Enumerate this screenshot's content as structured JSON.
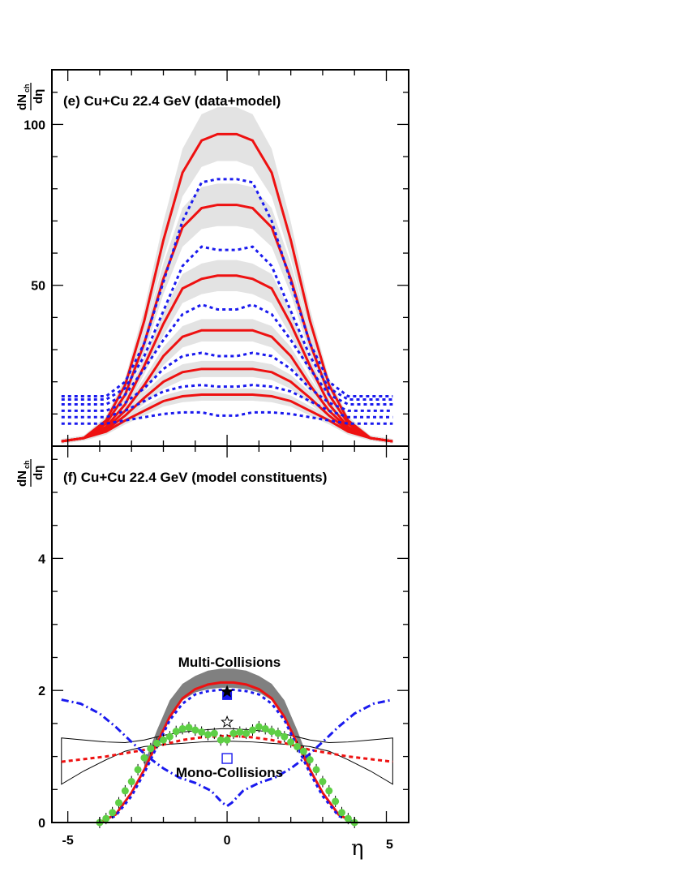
{
  "chart_data": [
    {
      "type": "line",
      "title": "(e) Cu+Cu 22.4 GeV (data+model)",
      "ylabel": {
        "main": "dN",
        "sub": "ch",
        "den": "dη"
      },
      "xlim": [
        -5.5,
        5.7
      ],
      "ylim": [
        0,
        117
      ],
      "yticks": [
        50,
        100
      ],
      "band_color": "#e3e3e3",
      "band_series": [
        {
          "lo": [
            5,
            5,
            6,
            10,
            18,
            30,
            38,
            38,
            30,
            18,
            10,
            6,
            5,
            5
          ],
          "hi": [
            5,
            5,
            7,
            13,
            28,
            60,
            102,
            102,
            60,
            28,
            13,
            7,
            5,
            5
          ]
        }
      ],
      "x_model": [
        -5.2,
        -4.5,
        -3.8,
        -3.2,
        -2.6,
        -2.0,
        -1.4,
        -0.8,
        -0.3,
        0.3,
        0.8,
        1.4,
        2.0,
        2.6,
        3.2,
        3.8,
        4.5,
        5.2
      ],
      "series": [
        {
          "color": "#ee1111",
          "style": "solid",
          "values": [
            1.5,
            2.5,
            4.5,
            8,
            11,
            14,
            15.5,
            16,
            16,
            16,
            16,
            15.5,
            14,
            11,
            8,
            4.5,
            2.5,
            1.5
          ]
        },
        {
          "color": "#ee1111",
          "style": "solid",
          "values": [
            1.5,
            2.5,
            5,
            9.5,
            15,
            20,
            23,
            24,
            24,
            24,
            24,
            23,
            20,
            15,
            9.5,
            5,
            2.5,
            1.5
          ]
        },
        {
          "color": "#ee1111",
          "style": "solid",
          "values": [
            1.5,
            2.5,
            5.5,
            11,
            19,
            28,
            34,
            36,
            36,
            36,
            36,
            34,
            28,
            19,
            11,
            5.5,
            2.5,
            1.5
          ]
        },
        {
          "color": "#ee1111",
          "style": "solid",
          "values": [
            1.5,
            2.5,
            6,
            13,
            25,
            38,
            49,
            52,
            53,
            53,
            52,
            49,
            38,
            25,
            13,
            6,
            2.5,
            1.5
          ]
        },
        {
          "color": "#ee1111",
          "style": "solid",
          "values": [
            1.5,
            2.5,
            7,
            16,
            32,
            52,
            68,
            74,
            75,
            75,
            74,
            68,
            52,
            32,
            16,
            7,
            2.5,
            1.5
          ]
        },
        {
          "color": "#ee1111",
          "style": "solid",
          "values": [
            1.5,
            2.5,
            8,
            19,
            39,
            64,
            85,
            95,
            97,
            97,
            95,
            85,
            64,
            39,
            19,
            8,
            2.5,
            1.5
          ]
        },
        {
          "color": "#1a1aee",
          "style": "dotted",
          "values": [
            7,
            7,
            7,
            8,
            9,
            10,
            10.5,
            10.5,
            9.5,
            9.5,
            10.5,
            10.5,
            10,
            9,
            8,
            7,
            7,
            7
          ]
        },
        {
          "color": "#1a1aee",
          "style": "dotted",
          "values": [
            9,
            9,
            9,
            11,
            14,
            17,
            18.5,
            19,
            18.5,
            18.5,
            19,
            18.5,
            17,
            14,
            11,
            9,
            9,
            9
          ]
        },
        {
          "color": "#1a1aee",
          "style": "dotted",
          "values": [
            11,
            11,
            11,
            13.5,
            18,
            24,
            28,
            29,
            28,
            28,
            29,
            28,
            24,
            18,
            13.5,
            11,
            11,
            11
          ]
        },
        {
          "color": "#1a1aee",
          "style": "dotted",
          "values": [
            13,
            13,
            13,
            16,
            24,
            33,
            41,
            44,
            42.5,
            42.5,
            44,
            41,
            33,
            24,
            16,
            13,
            13,
            13
          ]
        },
        {
          "color": "#1a1aee",
          "style": "dotted",
          "values": [
            14.5,
            14.5,
            14.5,
            18,
            28,
            42,
            56,
            62,
            61,
            61,
            62,
            56,
            42,
            28,
            18,
            14.5,
            14.5,
            14.5
          ]
        },
        {
          "color": "#1a1aee",
          "style": "dotted",
          "values": [
            15.5,
            15.5,
            15.5,
            20,
            32,
            51,
            70,
            82,
            83,
            83,
            82,
            70,
            51,
            32,
            20,
            15.5,
            15.5,
            15.5
          ]
        }
      ]
    },
    {
      "type": "line",
      "title": "(f) Cu+Cu 22.4 GeV (model constituents)",
      "ylabel": {
        "main": "dN",
        "sub": "ch",
        "den": "dη"
      },
      "xlabel": "η",
      "xlim": [
        -5.5,
        5.7
      ],
      "ylim": [
        0,
        5.7
      ],
      "yticks": [
        0,
        2,
        4
      ],
      "xticks": [
        -5,
        0,
        5
      ],
      "annotations": [
        "Multi-Collisions",
        "Mono-Collisions"
      ],
      "band_color": "#808080",
      "band_series": [
        {
          "x": [
            -2.6,
            -2.2,
            -1.8,
            -1.4,
            -1.0,
            -0.6,
            -0.2,
            0.2,
            0.6,
            1.0,
            1.4,
            1.8,
            2.2,
            2.6
          ],
          "lo": [
            0.8,
            1.25,
            1.6,
            1.85,
            1.97,
            2.02,
            2.04,
            2.04,
            2.02,
            1.97,
            1.85,
            1.6,
            1.25,
            0.8
          ],
          "hi": [
            0.9,
            1.4,
            1.85,
            2.1,
            2.22,
            2.3,
            2.33,
            2.33,
            2.3,
            2.22,
            2.1,
            1.85,
            1.4,
            0.9
          ]
        }
      ],
      "x_model": [
        -4.0,
        -3.5,
        -3.0,
        -2.6,
        -2.2,
        -1.8,
        -1.4,
        -1.0,
        -0.6,
        -0.2,
        0.2,
        0.6,
        1.0,
        1.4,
        1.8,
        2.2,
        2.6,
        3.0,
        3.5,
        4.0
      ],
      "series": [
        {
          "color": "#ee1111",
          "style": "solid",
          "values": [
            0,
            0.12,
            0.45,
            0.8,
            1.2,
            1.6,
            1.88,
            2.02,
            2.09,
            2.12,
            2.12,
            2.09,
            2.02,
            1.88,
            1.6,
            1.2,
            0.8,
            0.45,
            0.12,
            0
          ]
        },
        {
          "color": "#1a1aee",
          "style": "dotted",
          "values": [
            0,
            0.1,
            0.4,
            0.75,
            1.15,
            1.55,
            1.8,
            1.94,
            1.99,
            2.01,
            2.01,
            1.99,
            1.94,
            1.8,
            1.55,
            1.15,
            0.75,
            0.4,
            0.1,
            0
          ]
        }
      ],
      "thin_band": {
        "x": [
          -5.2,
          -4.5,
          -3.8,
          -3.2,
          -2.6,
          -2.0,
          -1.4,
          -0.8,
          -0.2,
          0.2,
          0.8,
          1.4,
          2.0,
          2.6,
          3.2,
          3.8,
          4.5,
          5.2
        ],
        "lo": [
          0.58,
          0.78,
          0.95,
          1.08,
          1.15,
          1.18,
          1.2,
          1.22,
          1.23,
          1.23,
          1.22,
          1.2,
          1.18,
          1.15,
          1.08,
          0.95,
          0.78,
          0.58
        ],
        "hi": [
          1.28,
          1.25,
          1.22,
          1.21,
          1.25,
          1.32,
          1.37,
          1.4,
          1.42,
          1.42,
          1.4,
          1.37,
          1.32,
          1.25,
          1.21,
          1.22,
          1.25,
          1.28
        ]
      },
      "red_dashed": {
        "x": [
          -5.2,
          -4.5,
          -3.8,
          -3.2,
          -2.6,
          -2.0,
          -1.4,
          -0.8,
          -0.2,
          0.2,
          0.8,
          1.4,
          2.0,
          2.6,
          3.2,
          3.8,
          4.5,
          5.2
        ],
        "values": [
          0.92,
          0.96,
          1.0,
          1.05,
          1.1,
          1.18,
          1.25,
          1.29,
          1.31,
          1.31,
          1.29,
          1.25,
          1.18,
          1.1,
          1.05,
          1.0,
          0.96,
          0.92
        ]
      },
      "blue_dashdot": {
        "x": [
          -5.2,
          -4.6,
          -4.0,
          -3.5,
          -3.0,
          -2.5,
          -2.0,
          -1.5,
          -1.0,
          -0.5,
          -0.15,
          0,
          0.15,
          0.5,
          1.0,
          1.5,
          2.0,
          2.5,
          3.0,
          3.5,
          4.0,
          4.6,
          5.2
        ],
        "values": [
          1.86,
          1.8,
          1.65,
          1.45,
          1.22,
          1.0,
          0.82,
          0.68,
          0.6,
          0.48,
          0.3,
          0.25,
          0.3,
          0.48,
          0.6,
          0.68,
          0.82,
          1.0,
          1.22,
          1.45,
          1.65,
          1.8,
          1.86
        ]
      },
      "green_points": {
        "x": [
          -4.0,
          -3.8,
          -3.6,
          -3.4,
          -3.2,
          -3.0,
          -2.8,
          -2.6,
          -2.4,
          -2.2,
          -2.0,
          -1.8,
          -1.6,
          -1.4,
          -1.2,
          -1.0,
          -0.8,
          -0.6,
          -0.4,
          -0.2,
          0.0,
          0.2,
          0.4,
          0.6,
          0.8,
          1.0,
          1.2,
          1.4,
          1.6,
          1.8,
          2.0,
          2.2,
          2.4,
          2.6,
          2.8,
          3.0,
          3.2,
          3.4,
          3.6,
          3.8,
          4.0
        ],
        "values": [
          0.0,
          0.06,
          0.15,
          0.3,
          0.48,
          0.62,
          0.8,
          0.98,
          1.12,
          1.2,
          1.25,
          1.3,
          1.38,
          1.42,
          1.44,
          1.4,
          1.37,
          1.33,
          1.35,
          1.25,
          1.25,
          1.35,
          1.37,
          1.35,
          1.4,
          1.45,
          1.42,
          1.38,
          1.35,
          1.3,
          1.22,
          1.15,
          1.08,
          0.95,
          0.8,
          0.62,
          0.48,
          0.32,
          0.15,
          0.06,
          0.0
        ],
        "color": "#5ecf45"
      },
      "markers": [
        {
          "shape": "filled-square",
          "x": 0,
          "y": 1.93,
          "color": "#1a1aee"
        },
        {
          "shape": "star",
          "x": 0,
          "y": 1.98,
          "color": "#000000"
        },
        {
          "shape": "open-star",
          "x": 0,
          "y": 1.52,
          "color": "#000000"
        },
        {
          "shape": "open-square",
          "x": 0,
          "y": 0.97,
          "color": "#1a1aee"
        }
      ]
    }
  ]
}
